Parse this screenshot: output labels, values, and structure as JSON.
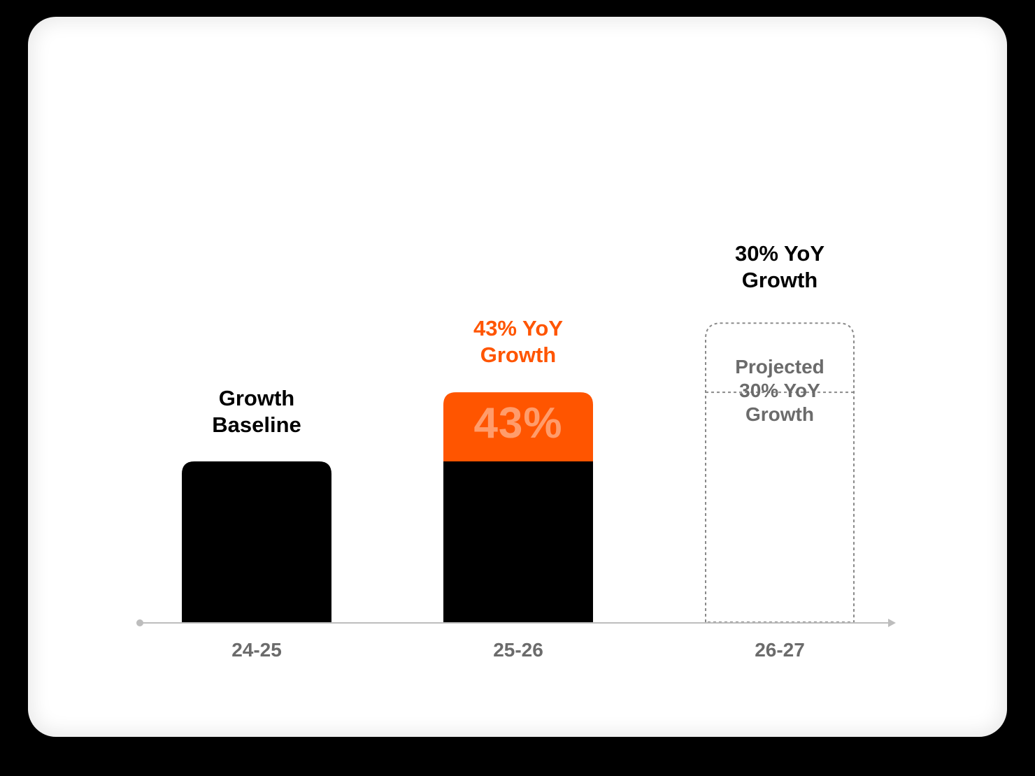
{
  "colors": {
    "baseline": "#000000",
    "growth": "#ff5500",
    "projected_border": "#8a8a8a",
    "axis": "#bdbdbd",
    "tick_text": "#6b6b6b"
  },
  "chart_data": {
    "type": "bar",
    "stacked": true,
    "categories": [
      "24-25",
      "25-26",
      "26-27"
    ],
    "series": [
      {
        "values": [
          100,
          100,
          143
        ],
        "style": "solid-then-dashed"
      },
      {
        "values": [
          0,
          43,
          43
        ],
        "style": "solid-then-dashed"
      }
    ],
    "bar_labels": [
      {
        "line1": "Growth",
        "line2": "Baseline"
      },
      {
        "line1": "43% YoY",
        "line2": "Growth"
      },
      {
        "line1": "30% YoY",
        "line2": "Growth"
      }
    ],
    "segment_labels": {
      "growth_25_26": "43%"
    },
    "projected_labels": {
      "line1": "Projected",
      "line2": "30% YoY",
      "line3": "Growth"
    },
    "projected_category": "26-27",
    "ylim": [
      0,
      186
    ],
    "grid": false,
    "legend": "none"
  }
}
